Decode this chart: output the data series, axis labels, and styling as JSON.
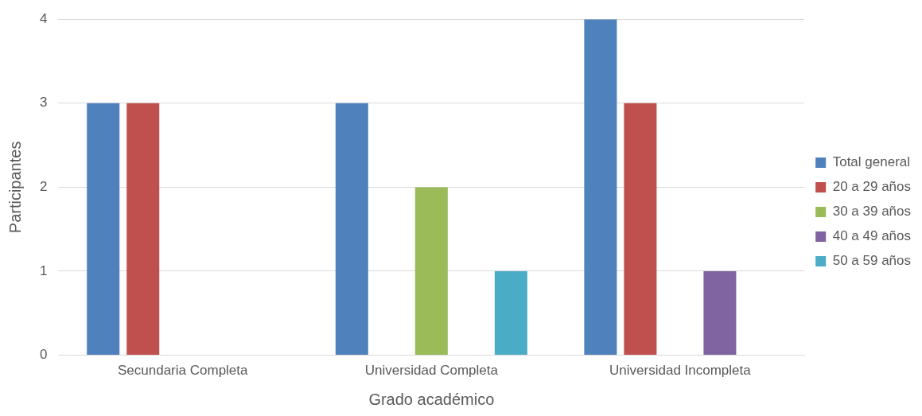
{
  "chart_data": {
    "type": "bar",
    "xlabel": "Grado académico",
    "ylabel": "Participantes",
    "categories": [
      "Secundaria Completa",
      "Universidad Completa",
      "Universidad Incompleta"
    ],
    "series": [
      {
        "name": "Total general",
        "color": "#4f81bd",
        "values": [
          3,
          3,
          4
        ]
      },
      {
        "name": "20 a 29 años",
        "color": "#c0504d",
        "values": [
          3,
          null,
          3
        ]
      },
      {
        "name": "30 a 39 años",
        "color": "#9bbb59",
        "values": [
          null,
          2,
          null
        ]
      },
      {
        "name": "40 a 49 años",
        "color": "#8064a2",
        "values": [
          null,
          null,
          1
        ]
      },
      {
        "name": "50 a 59 años",
        "color": "#4bacc6",
        "values": [
          null,
          1,
          null
        ]
      }
    ],
    "ylim": [
      0,
      4
    ],
    "yticks": [
      0,
      1,
      2,
      3,
      4
    ],
    "grid": "y",
    "legend": "right"
  }
}
